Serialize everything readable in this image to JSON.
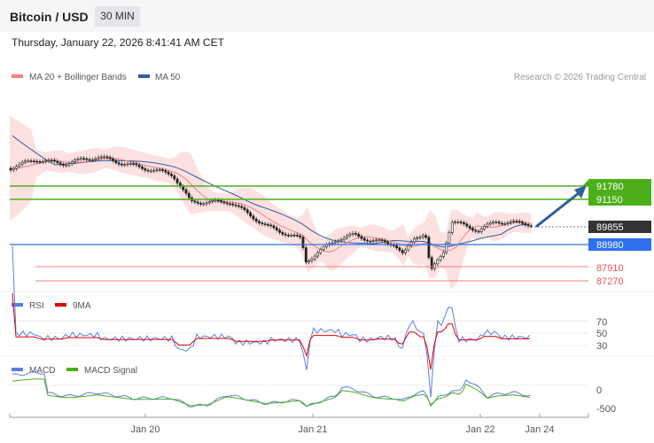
{
  "header": {
    "title": "Bitcoin / USD",
    "timeframe": "30 MIN"
  },
  "timestamp": "Thursday, January 22, 2026 8:41:41 AM CET",
  "chart_data": [
    {
      "type": "line",
      "panel": "price",
      "legend": [
        {
          "name": "MA 20 + Bollinger Bands",
          "color": "#f08080"
        },
        {
          "name": "MA 50",
          "color": "#2e5e9e"
        }
      ],
      "credit": "Research © 2026 Trading Central",
      "price_labels": [
        {
          "value": "91780",
          "color": "#4caf1a",
          "kind": "resistance"
        },
        {
          "value": "91150",
          "color": "#4caf1a",
          "kind": "resistance"
        },
        {
          "value": "89855",
          "color": "#333333",
          "kind": "last"
        },
        {
          "value": "88980",
          "color": "#2f6ff0",
          "kind": "pivot"
        },
        {
          "value": "87910",
          "color": "#e05555",
          "kind": "support"
        },
        {
          "value": "87270",
          "color": "#e05555",
          "kind": "support"
        }
      ],
      "arrow_direction": "up",
      "x_labels": [
        "Jan 20",
        "Jan 21",
        "Jan 22",
        "Jan 24"
      ]
    },
    {
      "type": "line",
      "panel": "rsi",
      "legend": [
        {
          "name": "RSI",
          "color": "#5b7fe0"
        },
        {
          "name": "9MA",
          "color": "#e00000"
        }
      ],
      "levels": [
        "70",
        "50",
        "30"
      ]
    },
    {
      "type": "line",
      "panel": "macd",
      "legend": [
        {
          "name": "MACD",
          "color": "#5b7fe0"
        },
        {
          "name": "MACD Signal",
          "color": "#4caf1a"
        }
      ],
      "levels": [
        "0",
        "-500"
      ]
    }
  ]
}
